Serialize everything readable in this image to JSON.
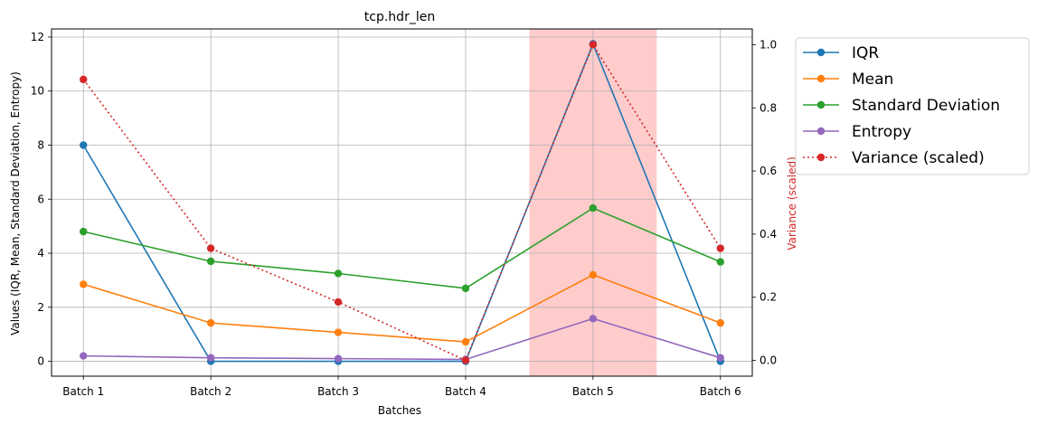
{
  "chart_data": {
    "type": "line",
    "title": "tcp.hdr_len",
    "xlabel": "Batches",
    "ylabel": "Values (IQR, Mean, Standard Deviation, Entropy)",
    "y2label": "Variance (scaled)",
    "categories": [
      "Batch 1",
      "Batch 2",
      "Batch 3",
      "Batch 4",
      "Batch 5",
      "Batch 6"
    ],
    "ylim": [
      -0.55,
      12.3
    ],
    "y2lim": [
      -0.05,
      1.05
    ],
    "yticks": [
      0,
      2,
      4,
      6,
      8,
      10,
      12
    ],
    "y2ticks": [
      0.0,
      0.2,
      0.4,
      0.6,
      0.8,
      1.0
    ],
    "y2tick_labels": [
      "0.0",
      "0.2",
      "0.4",
      "0.6",
      "0.8",
      "1.0"
    ],
    "grid": true,
    "legend_position": "outside-right-top",
    "highlight": {
      "from_x": 3.5,
      "to_x": 4.5,
      "color": "#ffcccc"
    },
    "series": [
      {
        "name": "IQR",
        "axis": "left",
        "color": "#1f77b4",
        "style": "solid",
        "values": [
          8.0,
          0.0,
          0.0,
          0.0,
          11.75,
          0.0
        ]
      },
      {
        "name": "Mean",
        "axis": "left",
        "color": "#ff7f0e",
        "style": "solid",
        "values": [
          2.85,
          1.42,
          1.07,
          0.72,
          3.2,
          1.42
        ]
      },
      {
        "name": "Standard Deviation",
        "axis": "left",
        "color": "#2ca02c",
        "style": "solid",
        "values": [
          4.8,
          3.7,
          3.25,
          2.7,
          5.67,
          3.68
        ]
      },
      {
        "name": "Entropy",
        "axis": "left",
        "color": "#9467bd",
        "style": "solid",
        "values": [
          0.2,
          0.13,
          0.1,
          0.07,
          1.58,
          0.13
        ]
      },
      {
        "name": "Variance (scaled)",
        "axis": "right",
        "color": "#d62728",
        "style": "dotted",
        "values": [
          0.89,
          0.355,
          0.185,
          0.0,
          1.0,
          0.355
        ]
      }
    ]
  }
}
